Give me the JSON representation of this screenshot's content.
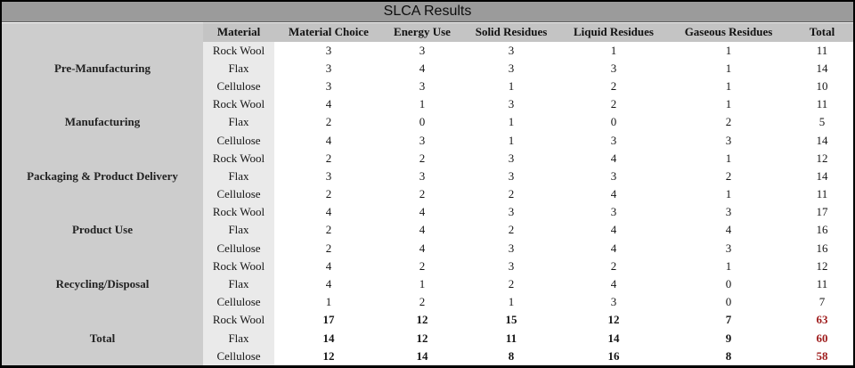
{
  "colors": {
    "border": "#000000",
    "title-bar": "#9b9b9b",
    "header-bg": "#c4c4c4",
    "stage-col-bg": "#cdcdcd",
    "material-col-bg": "#eaeaea",
    "grand-total-text": "#9e1b1b"
  },
  "chart_data": {
    "type": "table",
    "title": "SLCA Results",
    "columns": [
      "Material",
      "Material Choice",
      "Energy Use",
      "Solid Residues",
      "Liquid Residues",
      "Gaseous Residues",
      "Total"
    ],
    "row_groups": [
      {
        "stage": "Pre-Manufacturing",
        "rows": [
          {
            "material": "Rock Wool",
            "values": [
              3,
              3,
              3,
              1,
              1
            ],
            "total": 11
          },
          {
            "material": "Flax",
            "values": [
              3,
              4,
              3,
              3,
              1
            ],
            "total": 14
          },
          {
            "material": "Cellulose",
            "values": [
              3,
              3,
              1,
              2,
              1
            ],
            "total": 10
          }
        ]
      },
      {
        "stage": "Manufacturing",
        "rows": [
          {
            "material": "Rock Wool",
            "values": [
              4,
              1,
              3,
              2,
              1
            ],
            "total": 11
          },
          {
            "material": "Flax",
            "values": [
              2,
              0,
              1,
              0,
              2
            ],
            "total": 5
          },
          {
            "material": "Cellulose",
            "values": [
              4,
              3,
              1,
              3,
              3
            ],
            "total": 14
          }
        ]
      },
      {
        "stage": "Packaging & Product Delivery",
        "rows": [
          {
            "material": "Rock Wool",
            "values": [
              2,
              2,
              3,
              4,
              1
            ],
            "total": 12
          },
          {
            "material": "Flax",
            "values": [
              3,
              3,
              3,
              3,
              2
            ],
            "total": 14
          },
          {
            "material": "Cellulose",
            "values": [
              2,
              2,
              2,
              4,
              1
            ],
            "total": 11
          }
        ]
      },
      {
        "stage": "Product Use",
        "rows": [
          {
            "material": "Rock Wool",
            "values": [
              4,
              4,
              3,
              3,
              3
            ],
            "total": 17
          },
          {
            "material": "Flax",
            "values": [
              2,
              4,
              2,
              4,
              4
            ],
            "total": 16
          },
          {
            "material": "Cellulose",
            "values": [
              2,
              4,
              3,
              4,
              3
            ],
            "total": 16
          }
        ]
      },
      {
        "stage": "Recycling/Disposal",
        "rows": [
          {
            "material": "Rock Wool",
            "values": [
              4,
              2,
              3,
              2,
              1
            ],
            "total": 12
          },
          {
            "material": "Flax",
            "values": [
              4,
              1,
              2,
              4,
              0
            ],
            "total": 11
          },
          {
            "material": "Cellulose",
            "values": [
              1,
              2,
              1,
              3,
              0
            ],
            "total": 7
          }
        ]
      },
      {
        "stage": "Total",
        "bold": true,
        "rows": [
          {
            "material": "Rock Wool",
            "values": [
              17,
              12,
              15,
              12,
              7
            ],
            "total": 63
          },
          {
            "material": "Flax",
            "values": [
              14,
              12,
              11,
              14,
              9
            ],
            "total": 60
          },
          {
            "material": "Cellulose",
            "values": [
              12,
              14,
              8,
              16,
              8
            ],
            "total": 58
          }
        ]
      }
    ]
  }
}
